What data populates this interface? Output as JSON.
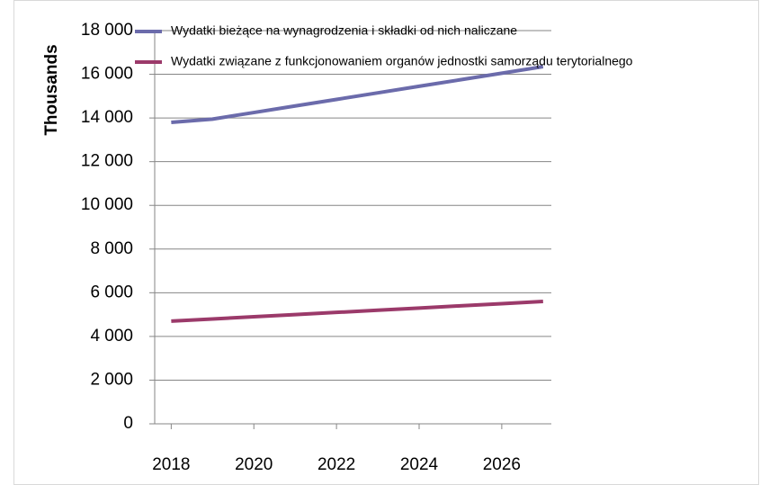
{
  "chart_data": {
    "type": "line",
    "y_label": "Thousands",
    "x": [
      2018,
      2019,
      2020,
      2021,
      2022,
      2023,
      2024,
      2025,
      2026,
      2027
    ],
    "xlim": [
      2017.6,
      2027.2
    ],
    "xticks": [
      2018,
      2020,
      2022,
      2024,
      2026
    ],
    "ylim": [
      0,
      18000
    ],
    "yticks": [
      {
        "value": 0,
        "label": "0"
      },
      {
        "value": 2000,
        "label": "2 000"
      },
      {
        "value": 4000,
        "label": "4 000"
      },
      {
        "value": 6000,
        "label": "6 000"
      },
      {
        "value": 8000,
        "label": "8 000"
      },
      {
        "value": 10000,
        "label": "10 000"
      },
      {
        "value": 12000,
        "label": "12 000"
      },
      {
        "value": 14000,
        "label": "14 000"
      },
      {
        "value": 16000,
        "label": "16 000"
      },
      {
        "value": 18000,
        "label": "18 000"
      }
    ],
    "grid": true,
    "legend": "top",
    "series": [
      {
        "name": "Wydatki bieżące na wynagrodzenia i składki od nich naliczane",
        "color": "#6b6bab",
        "values": [
          13800,
          13950,
          14250,
          14550,
          14850,
          15150,
          15450,
          15750,
          16050,
          16350
        ]
      },
      {
        "name": "Wydatki związane z funkcjonowaniem organów jednostki samorządu terytorialnego",
        "color": "#9b3a6a",
        "values": [
          4700,
          4800,
          4900,
          5000,
          5100,
          5200,
          5300,
          5400,
          5500,
          5600
        ]
      }
    ]
  }
}
